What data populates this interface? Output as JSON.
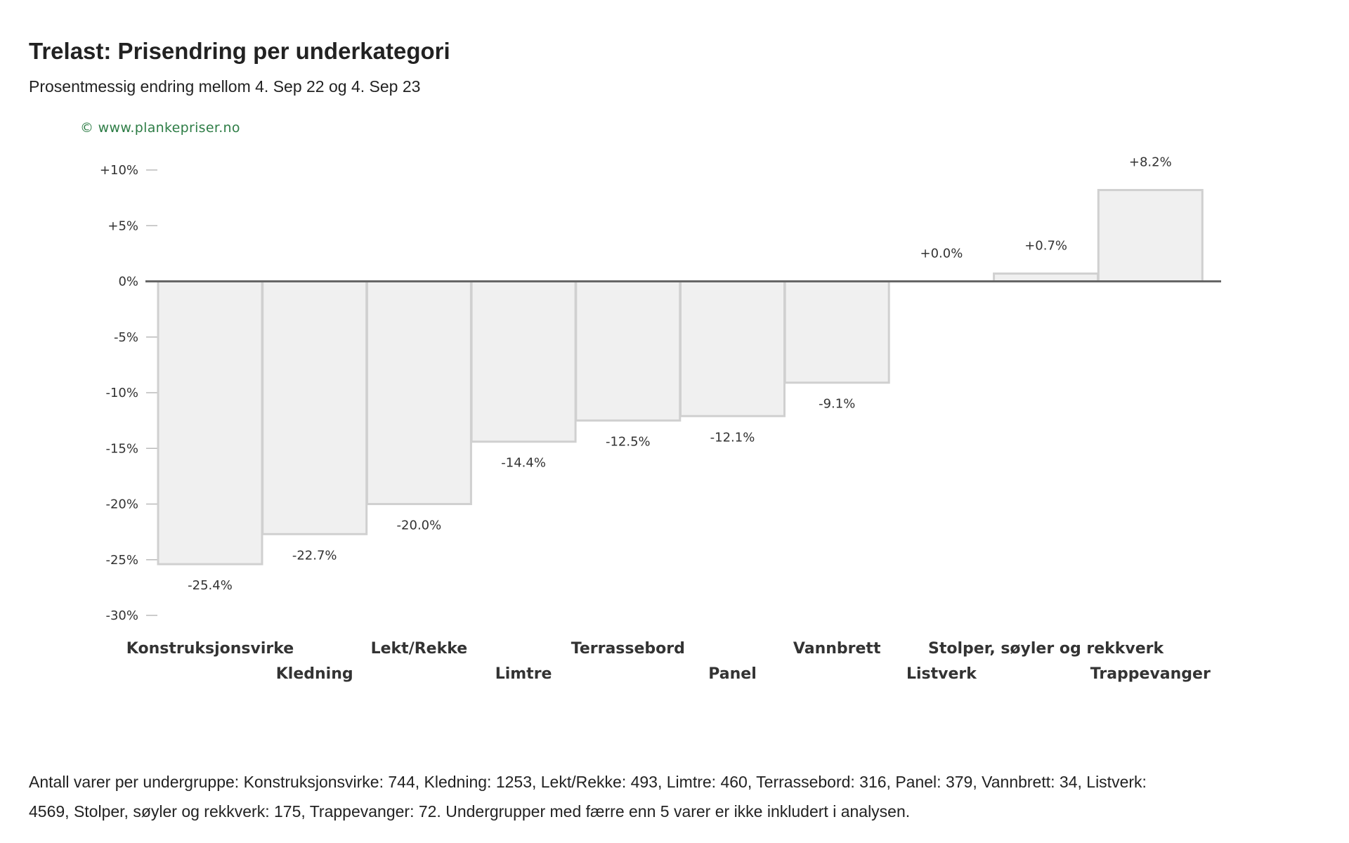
{
  "header": {
    "title": "Trelast: Prisendring per underkategori",
    "subtitle": "Prosentmessig endring mellom 4. Sep 22 og 4. Sep 23",
    "watermark": "© www.plankepriser.no"
  },
  "colors": {
    "bar_fill": "#f0f0f0",
    "bar_stroke": "#d0d0d0",
    "zero_line": "#666666",
    "tick": "#bbbbbb",
    "text": "#333333",
    "watermark": "#2e7d46"
  },
  "chart_data": {
    "type": "bar",
    "title": "Trelast: Prisendring per underkategori",
    "subtitle": "Prosentmessig endring mellom 4. Sep 22 og 4. Sep 23",
    "categories": [
      "Konstruksjonsvirke",
      "Kledning",
      "Lekt/Rekke",
      "Limtre",
      "Terrassebord",
      "Panel",
      "Vannbrett",
      "Listverk",
      "Stolper, søyler og rekkverk",
      "Trappevanger"
    ],
    "values": [
      -25.4,
      -22.7,
      -20.0,
      -14.4,
      -12.5,
      -12.1,
      -9.1,
      0.0,
      0.7,
      8.2
    ],
    "value_labels": [
      "-25.4%",
      "-22.7%",
      "-20.0%",
      "-14.4%",
      "-12.5%",
      "-12.1%",
      "-9.1%",
      "+0.0%",
      "+0.7%",
      "+8.2%"
    ],
    "yticks": [
      10,
      5,
      0,
      -5,
      -10,
      -15,
      -20,
      -25,
      -30
    ],
    "ytick_labels": [
      "+10%",
      "+5%",
      "0%",
      "-5%",
      "-10%",
      "-15%",
      "-20%",
      "-25%",
      "-30%"
    ],
    "ylim": [
      -30,
      10
    ],
    "xlabel": "",
    "ylabel": "",
    "legend": "none",
    "grid": false
  },
  "footnote": "Antall varer per undergruppe: Konstruksjonsvirke: 744, Kledning: 1253, Lekt/Rekke: 493, Limtre: 460, Terrassebord: 316, Panel: 379, Vannbrett: 34, Listverk: 4569, Stolper, søyler og rekkverk: 175, Trappevanger: 72. Undergrupper med færre enn 5 varer er ikke inkludert i analysen."
}
